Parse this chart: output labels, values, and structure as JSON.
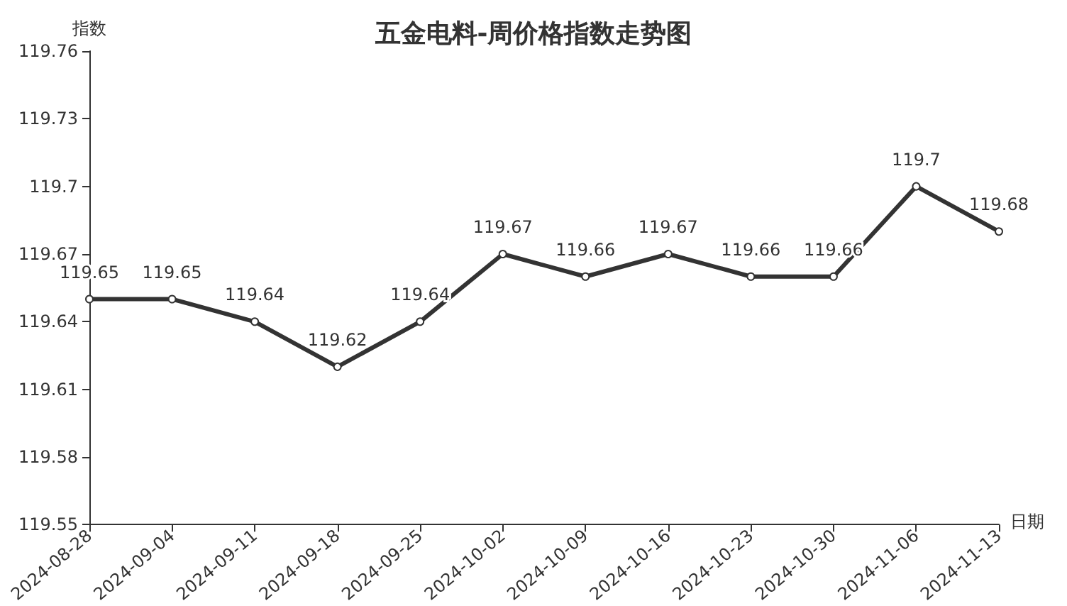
{
  "chart_data": {
    "type": "line",
    "title": "五金电料-周价格指数走势图",
    "xlabel": "日期",
    "ylabel": "指数",
    "categories": [
      "2024-08-28",
      "2024-09-04",
      "2024-09-11",
      "2024-09-18",
      "2024-09-25",
      "2024-10-02",
      "2024-10-09",
      "2024-10-16",
      "2024-10-23",
      "2024-10-30",
      "2024-11-06",
      "2024-11-13"
    ],
    "series": [
      {
        "color": "#333333",
        "values": [
          119.65,
          119.65,
          119.64,
          119.62,
          119.64,
          119.67,
          119.66,
          119.67,
          119.66,
          119.66,
          119.7,
          119.68
        ]
      }
    ],
    "ylim": [
      119.55,
      119.76
    ],
    "yticks": [
      119.55,
      119.58,
      119.61,
      119.64,
      119.67,
      119.7,
      119.73,
      119.76
    ],
    "data_labels": true,
    "marker": "circle",
    "line_style": "solid"
  }
}
